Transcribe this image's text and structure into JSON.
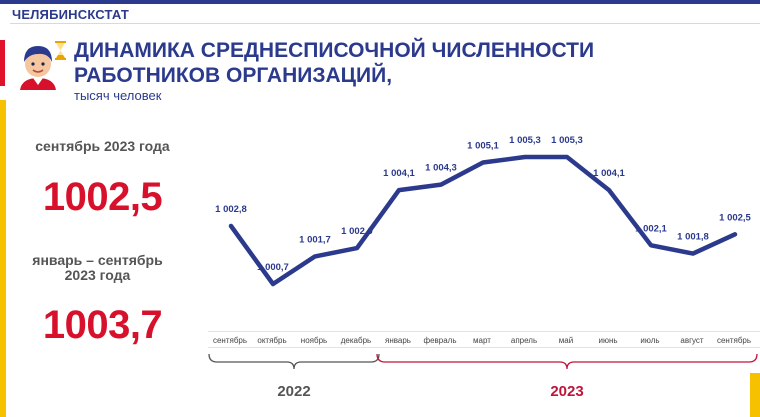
{
  "header": {
    "org": "ЧЕЛЯБИНСКСТАТ"
  },
  "title": {
    "main": "ДИНАМИКА СРЕДНЕСПИСОЧНОЙ ЧИСЛЕННОСТИ РАБОТНИКОВ ОРГАНИЗАЦИЙ,",
    "unit": "тысяч человек"
  },
  "stats": [
    {
      "label": "сентябрь 2023 года",
      "value": "1002,5"
    },
    {
      "label": "январь – сентябрь 2023 года",
      "value": "1003,7"
    }
  ],
  "colors": {
    "brand": "#2b3a8c",
    "accent_red": "#d7102b",
    "accent_yellow": "#f6c200",
    "year_2022_bracket": "#555555",
    "year_2023_bracket": "#c0143c"
  },
  "icons": [
    "person-avatar-icon",
    "hourglass-icon"
  ],
  "chart_data": {
    "type": "line",
    "categories": [
      "сентябрь",
      "октябрь",
      "ноябрь",
      "декабрь",
      "январь",
      "февраль",
      "март",
      "апрель",
      "май",
      "июнь",
      "июль",
      "август",
      "сентябрь"
    ],
    "values": [
      1002.8,
      1000.7,
      1001.7,
      1002.0,
      1004.1,
      1004.3,
      1005.1,
      1005.3,
      1005.3,
      1004.1,
      1002.1,
      1001.8,
      1002.5
    ],
    "data_labels": [
      "1 002,8",
      "1 000,7",
      "1 001,7",
      "1 002,0",
      "1 004,1",
      "1 004,3",
      "1 005,1",
      "1 005,3",
      "1 005,3",
      "1 004,1",
      "1 002,1",
      "1 001,8",
      "1 002,5"
    ],
    "groups": [
      {
        "label": "2022",
        "from": 0,
        "to": 3
      },
      {
        "label": "2023",
        "from": 4,
        "to": 12
      }
    ],
    "grid": false,
    "line_color": "#2b3a8c"
  }
}
